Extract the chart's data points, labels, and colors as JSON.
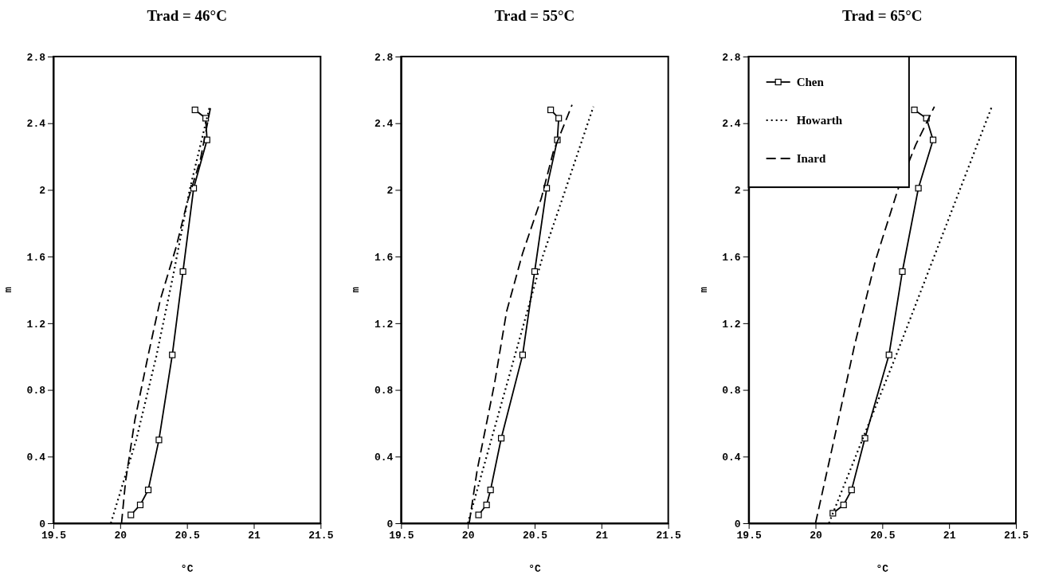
{
  "chart_data": [
    {
      "type": "line",
      "title": "Trad = 46°C",
      "xlabel": "°C",
      "ylabel": "m",
      "xlim": [
        19.5,
        21.5
      ],
      "xticks": [
        19.5,
        20,
        20.5,
        21,
        21.5
      ],
      "ylim": [
        0,
        2.8
      ],
      "yticks": [
        0,
        0.4,
        0.8,
        1.2,
        1.6,
        2,
        2.4,
        2.8
      ],
      "grid": false,
      "legend": false,
      "series": [
        {
          "color": "#000000",
          "marker": "square",
          "line_style": "solid",
          "x": [
            20.08,
            20.15,
            20.21,
            20.29,
            20.39,
            20.47,
            20.55,
            20.65,
            20.64,
            20.56
          ],
          "values": [
            0.05,
            0.11,
            0.2,
            0.5,
            1.01,
            1.51,
            2.01,
            2.3,
            2.43,
            2.48
          ]
        },
        {
          "color": "#000000",
          "marker": "none",
          "line_style": "dotted",
          "x": [
            19.93,
            20.12,
            20.27,
            20.4,
            20.52,
            20.67
          ],
          "values": [
            0,
            0.5,
            1.0,
            1.5,
            2.0,
            2.5
          ]
        },
        {
          "color": "#000000",
          "marker": "none",
          "line_style": "dashed",
          "x": [
            20.01,
            20.04,
            20.11,
            20.21,
            20.3,
            20.42,
            20.5,
            20.6,
            20.68
          ],
          "values": [
            0,
            0.25,
            0.62,
            1.01,
            1.34,
            1.66,
            1.92,
            2.18,
            2.51
          ]
        }
      ]
    },
    {
      "type": "line",
      "title": "Trad = 55°C",
      "xlabel": "°C",
      "ylabel": "m",
      "xlim": [
        19.5,
        21.5
      ],
      "xticks": [
        19.5,
        20,
        20.5,
        21,
        21.5
      ],
      "ylim": [
        0,
        2.8
      ],
      "yticks": [
        0,
        0.4,
        0.8,
        1.2,
        1.6,
        2,
        2.4,
        2.8
      ],
      "grid": false,
      "legend": false,
      "series": [
        {
          "color": "#000000",
          "marker": "square",
          "line_style": "solid",
          "x": [
            20.08,
            20.14,
            20.17,
            20.25,
            20.41,
            20.5,
            20.59,
            20.67,
            20.68,
            20.62
          ],
          "values": [
            0.05,
            0.11,
            0.2,
            0.51,
            1.01,
            1.51,
            2.01,
            2.3,
            2.43,
            2.48
          ]
        },
        {
          "color": "#000000",
          "marker": "none",
          "line_style": "dotted",
          "x": [
            20.0,
            20.14,
            20.28,
            20.42,
            20.56,
            20.73,
            20.94
          ],
          "values": [
            0,
            0.4,
            0.8,
            1.2,
            1.6,
            2.0,
            2.5
          ]
        },
        {
          "color": "#000000",
          "marker": "none",
          "line_style": "dashed",
          "x": [
            20.01,
            20.07,
            20.2,
            20.29,
            20.41,
            20.55,
            20.64,
            20.78
          ],
          "values": [
            0,
            0.32,
            0.84,
            1.27,
            1.62,
            1.95,
            2.23,
            2.51
          ]
        }
      ]
    },
    {
      "type": "line",
      "title": "Trad = 65°C",
      "xlabel": "°C",
      "ylabel": "m",
      "xlim": [
        19.5,
        21.5
      ],
      "xticks": [
        19.5,
        20,
        20.5,
        21,
        21.5
      ],
      "ylim": [
        0,
        2.8
      ],
      "yticks": [
        0,
        0.4,
        0.8,
        1.2,
        1.6,
        2,
        2.4,
        2.8
      ],
      "grid": false,
      "legend": "top left",
      "series": [
        {
          "name": "Chen",
          "color": "#000000",
          "marker": "square",
          "line_style": "solid",
          "x": [
            20.13,
            20.21,
            20.27,
            20.37,
            20.55,
            20.65,
            20.77,
            20.88,
            20.83,
            20.74
          ],
          "values": [
            0.06,
            0.11,
            0.2,
            0.51,
            1.01,
            1.51,
            2.01,
            2.3,
            2.43,
            2.48
          ]
        },
        {
          "name": "Howarth",
          "color": "#000000",
          "marker": "none",
          "line_style": "dotted",
          "x": [
            20.1,
            20.35,
            20.6,
            20.84,
            21.08,
            21.32
          ],
          "values": [
            0,
            0.5,
            1.0,
            1.5,
            2.0,
            2.5
          ]
        },
        {
          "name": "Inard",
          "color": "#000000",
          "marker": "none",
          "line_style": "dashed",
          "x": [
            20.0,
            20.13,
            20.29,
            20.45,
            20.62,
            20.75,
            20.89
          ],
          "values": [
            0,
            0.47,
            1.06,
            1.58,
            2.01,
            2.27,
            2.5
          ]
        }
      ]
    }
  ]
}
